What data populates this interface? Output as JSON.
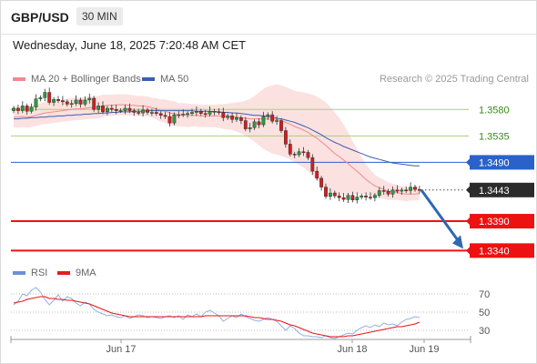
{
  "header": {
    "pair": "GBP/USD",
    "timeframe": "30 MIN",
    "datetime": "Wednesday, June 18, 2025 7:20:48 AM CET"
  },
  "colors": {
    "ma20": "#f08a8a",
    "ma50": "#3a5fb0",
    "band": "#fbdcdc",
    "bull": "#2e9b3a",
    "bear": "#d11f1f",
    "support": "#ee1111",
    "resistance": "#a9cf7a",
    "pivot": "#2a62c9",
    "last": "#2b2b2b",
    "arrow": "#2f67b1",
    "rsi": "#8fb1e6"
  },
  "legend": {
    "ma20_label": "MA 20 + Bollinger Bands",
    "ma50_label": "MA 50",
    "credit": "Research © 2025 Trading Central",
    "rsi_label": "RSI",
    "ma9_label": "9MA"
  },
  "chart_data": {
    "type": "candlestick",
    "price_range": [
      1.3322,
      1.3616
    ],
    "levels": [
      {
        "value": 1.358,
        "label": "1.3580",
        "kind": "resistance"
      },
      {
        "value": 1.3535,
        "label": "1.3535",
        "kind": "resistance"
      },
      {
        "value": 1.349,
        "label": "1.3490",
        "kind": "pivot"
      },
      {
        "value": 1.3443,
        "label": "1.3443",
        "kind": "last"
      },
      {
        "value": 1.339,
        "label": "1.3390",
        "kind": "support"
      },
      {
        "value": 1.334,
        "label": "1.3340",
        "kind": "support"
      }
    ],
    "close": [
      1.3582,
      1.3578,
      1.3586,
      1.3577,
      1.3584,
      1.3598,
      1.36,
      1.3609,
      1.3592,
      1.3597,
      1.3595,
      1.3593,
      1.3589,
      1.359,
      1.3596,
      1.3589,
      1.3596,
      1.3599,
      1.358,
      1.3586,
      1.3576,
      1.3582,
      1.358,
      1.3578,
      1.3578,
      1.3582,
      1.3578,
      1.3575,
      1.3574,
      1.3579,
      1.3575,
      1.3575,
      1.3573,
      1.357,
      1.3568,
      1.3557,
      1.3571,
      1.3571,
      1.3572,
      1.3573,
      1.3575,
      1.3577,
      1.3573,
      1.3572,
      1.3577,
      1.3576,
      1.3575,
      1.3566,
      1.3569,
      1.3563,
      1.3566,
      1.3561,
      1.3547,
      1.3549,
      1.3559,
      1.3554,
      1.3568,
      1.3571,
      1.356,
      1.3561,
      1.3544,
      1.3521,
      1.3504,
      1.3503,
      1.3508,
      1.3507,
      1.3498,
      1.3475,
      1.3463,
      1.3448,
      1.3432,
      1.3438,
      1.3433,
      1.343,
      1.3427,
      1.3434,
      1.3426,
      1.3431,
      1.3433,
      1.3431,
      1.343,
      1.3434,
      1.3442,
      1.3441,
      1.3436,
      1.3443,
      1.3441,
      1.3443,
      1.3442,
      1.3448,
      1.3444,
      1.3443
    ],
    "ma20": [
      1.3567,
      1.3567,
      1.3568,
      1.3567,
      1.3568,
      1.357,
      1.3572,
      1.3574,
      1.3575,
      1.3576,
      1.3577,
      1.3578,
      1.3579,
      1.358,
      1.3581,
      1.3581,
      1.3582,
      1.3583,
      1.3583,
      1.3584,
      1.3586,
      1.3587,
      1.3587,
      1.3588,
      1.3588,
      1.3588,
      1.3587,
      1.3587,
      1.3586,
      1.3586,
      1.3585,
      1.3583,
      1.3581,
      1.3578,
      1.3577,
      1.3574,
      1.3573,
      1.3571,
      1.3571,
      1.357,
      1.357,
      1.357,
      1.3569,
      1.3569,
      1.3569,
      1.3569,
      1.3569,
      1.3568,
      1.3568,
      1.3568,
      1.3567,
      1.3566,
      1.3565,
      1.3564,
      1.3564,
      1.3564,
      1.3564,
      1.3564,
      1.3563,
      1.3563,
      1.3561,
      1.3558,
      1.3555,
      1.3551,
      1.3548,
      1.3545,
      1.3541,
      1.3536,
      1.3531,
      1.3525,
      1.3519,
      1.3512,
      1.3505,
      1.35,
      1.3494,
      1.3488,
      1.3481,
      1.3475,
      1.3468,
      1.3461,
      1.3455,
      1.345,
      1.3447,
      1.3444,
      1.3441,
      1.344,
      1.3439,
      1.3437,
      1.3436,
      1.3436,
      1.3436,
      1.3437
    ],
    "ma50": [
      1.3564,
      1.3564,
      1.3565,
      1.3565,
      1.3566,
      1.3566,
      1.3567,
      1.3567,
      1.3568,
      1.3568,
      1.3569,
      1.3569,
      1.357,
      1.357,
      1.3571,
      1.3571,
      1.3572,
      1.3572,
      1.3573,
      1.3573,
      1.3574,
      1.3574,
      1.3575,
      1.3575,
      1.3576,
      1.3576,
      1.3576,
      1.3577,
      1.3577,
      1.3577,
      1.3578,
      1.3578,
      1.3578,
      1.3578,
      1.3578,
      1.3578,
      1.3578,
      1.3578,
      1.3578,
      1.3578,
      1.3578,
      1.3577,
      1.3577,
      1.3577,
      1.3577,
      1.3576,
      1.3576,
      1.3575,
      1.3575,
      1.3574,
      1.3574,
      1.3573,
      1.3572,
      1.3571,
      1.357,
      1.357,
      1.3569,
      1.3568,
      1.3567,
      1.3565,
      1.3564,
      1.3562,
      1.356,
      1.3558,
      1.3555,
      1.3552,
      1.3549,
      1.3545,
      1.3541,
      1.3537,
      1.3532,
      1.3528,
      1.3524,
      1.3521,
      1.3517,
      1.3514,
      1.3511,
      1.3508,
      1.3505,
      1.3502,
      1.3499,
      1.3497,
      1.3495,
      1.3493,
      1.3491,
      1.3489,
      1.3488,
      1.3487,
      1.3486,
      1.3485,
      1.3484,
      1.3484
    ],
    "bb_width": [
      0.0018,
      0.0018,
      0.0018,
      0.0018,
      0.0018,
      0.0018,
      0.0018,
      0.0019,
      0.0019,
      0.0019,
      0.0019,
      0.0019,
      0.0019,
      0.0019,
      0.0019,
      0.0019,
      0.0019,
      0.0019,
      0.0019,
      0.0019,
      0.0019,
      0.0018,
      0.0018,
      0.0018,
      0.0018,
      0.0018,
      0.0018,
      0.0017,
      0.0017,
      0.0017,
      0.0017,
      0.0017,
      0.0018,
      0.0019,
      0.002,
      0.0021,
      0.0021,
      0.002,
      0.002,
      0.002,
      0.0019,
      0.0019,
      0.0019,
      0.0019,
      0.0019,
      0.0019,
      0.002,
      0.0021,
      0.0022,
      0.0023,
      0.0025,
      0.0027,
      0.003,
      0.0034,
      0.0039,
      0.0045,
      0.0051,
      0.0055,
      0.0058,
      0.006,
      0.006,
      0.006,
      0.006,
      0.0061,
      0.0062,
      0.0064,
      0.0066,
      0.0069,
      0.0071,
      0.0072,
      0.0073,
      0.0072,
      0.007,
      0.0066,
      0.006,
      0.0053,
      0.0045,
      0.0038,
      0.0031,
      0.0026,
      0.0022,
      0.0019,
      0.0017,
      0.0016,
      0.0015,
      0.0014,
      0.0013,
      0.0012,
      0.0012,
      0.0011,
      0.0011,
      0.0011
    ],
    "rsi_range": [
      20,
      80
    ],
    "rsi_levels": [
      {
        "value": 70,
        "label": "70"
      },
      {
        "value": 50,
        "label": "50"
      },
      {
        "value": 30,
        "label": "30"
      }
    ],
    "rsi": [
      58,
      62,
      70,
      68,
      74,
      77,
      72,
      64,
      58,
      63,
      69,
      62,
      67,
      65,
      60,
      57,
      61,
      59,
      53,
      50,
      48,
      46,
      47,
      45,
      44,
      46,
      43,
      45,
      47,
      46,
      44,
      45,
      44,
      43,
      45,
      46,
      44,
      46,
      42,
      47,
      45,
      48,
      45,
      50,
      52,
      49,
      46,
      40,
      43,
      46,
      44,
      48,
      45,
      43,
      41,
      40,
      42,
      44,
      42,
      40,
      35,
      30,
      35,
      32,
      27,
      24,
      24,
      23,
      23,
      22,
      24,
      22,
      21,
      23,
      25,
      27,
      26,
      30,
      33,
      35,
      33,
      36,
      34,
      38,
      36,
      37,
      35,
      39,
      42,
      43,
      45,
      44
    ],
    "rsi_ma9": [
      60,
      61,
      62,
      64,
      65,
      66,
      67,
      67,
      65,
      65,
      64,
      64,
      63,
      63,
      62,
      61,
      60,
      59,
      57,
      55,
      53,
      51,
      49,
      48,
      47,
      46,
      45,
      45,
      45,
      45,
      45,
      45,
      45,
      45,
      45,
      45,
      45,
      45,
      45,
      45,
      45,
      45,
      45,
      46,
      46,
      46,
      46,
      46,
      46,
      46,
      46,
      46,
      46,
      45,
      44,
      44,
      43,
      42,
      42,
      41,
      40,
      38,
      36,
      35,
      33,
      31,
      29,
      27,
      26,
      25,
      24,
      23,
      23,
      23,
      23,
      24,
      24,
      25,
      26,
      27,
      28,
      29,
      30,
      31,
      32,
      33,
      34,
      34,
      35,
      36,
      37,
      39
    ],
    "x_ticks": [
      "Jun 17",
      "Jun 18",
      "Jun 19"
    ]
  }
}
